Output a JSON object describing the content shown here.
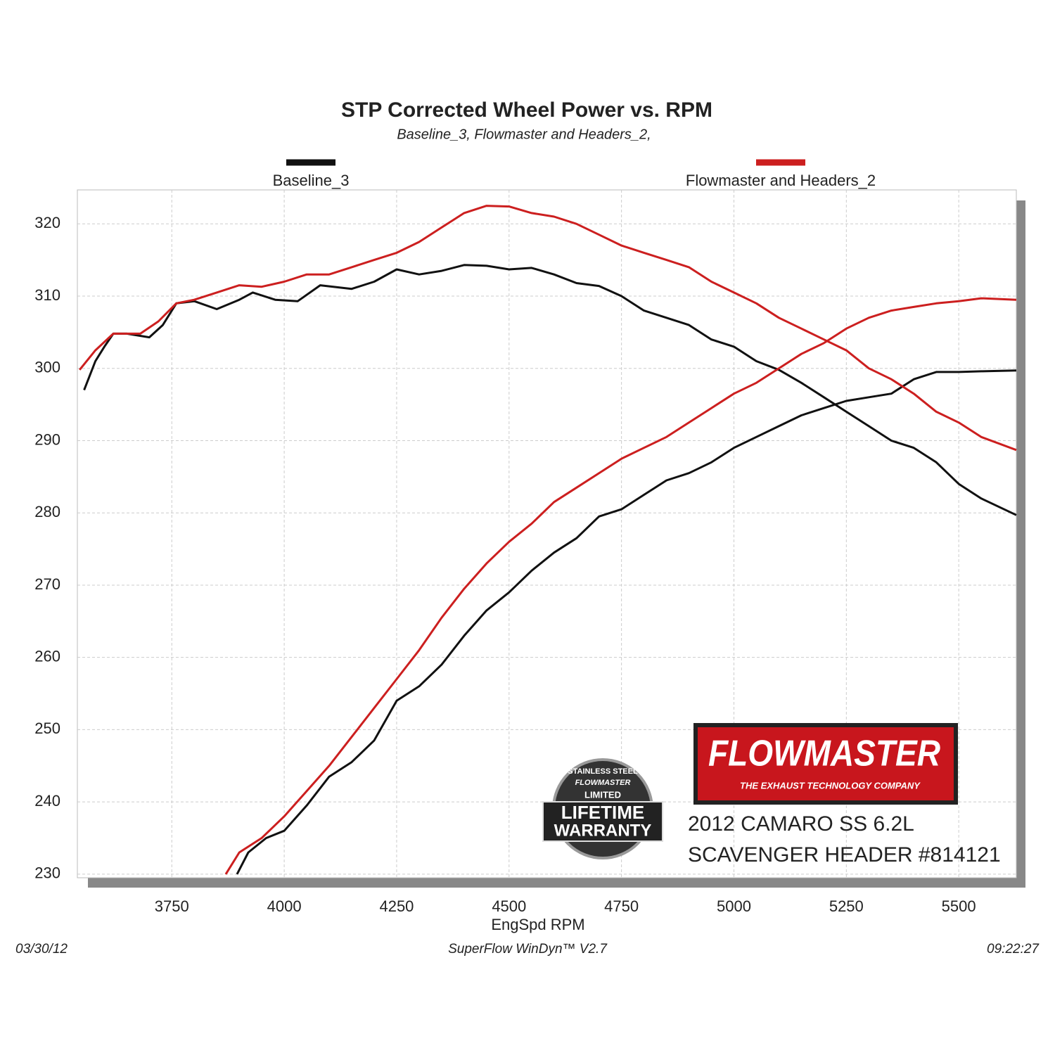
{
  "chart_data": {
    "type": "line",
    "title": "STP Corrected Wheel Power vs. RPM",
    "subtitle": "Baseline_3, Flowmaster and Headers_2,",
    "x_label": "EngSpd  RPM",
    "xlim": [
      3540,
      5628
    ],
    "ylim": [
      229.5,
      324.7
    ],
    "xticks": [
      3750,
      4000,
      4250,
      4500,
      4750,
      5000,
      5250,
      5500
    ],
    "yticks": [
      230,
      240,
      250,
      260,
      270,
      280,
      290,
      300,
      310,
      320
    ],
    "grid": true,
    "series": [
      {
        "name": "Baseline_3",
        "color": "#111111",
        "curves": [
          {
            "x": [
              3555,
              3580,
              3600,
              3620,
              3650,
              3700,
              3730,
              3760,
              3800,
              3850,
              3900,
              3930,
              3980,
              4030,
              4080,
              4150,
              4200,
              4250,
              4300,
              4350,
              4400,
              4450,
              4500,
              4550,
              4600,
              4650,
              4700,
              4750,
              4800,
              4850,
              4900,
              4950,
              5000,
              5050,
              5100,
              5150,
              5200,
              5250,
              5300,
              5350,
              5400,
              5450,
              5500,
              5550,
              5628
            ],
            "values": [
              297,
              301,
              303,
              304.8,
              304.8,
              304.3,
              306,
              309,
              309.3,
              308.2,
              309.5,
              310.5,
              309.5,
              309.3,
              311.5,
              311,
              312,
              313.7,
              313,
              313.5,
              314.3,
              314.2,
              313.7,
              313.9,
              313,
              311.8,
              311.4,
              310,
              308,
              307,
              306,
              304,
              303,
              301,
              299.8,
              298,
              296,
              294,
              292,
              290,
              289,
              287,
              284,
              282,
              279.7
            ]
          },
          {
            "x": [
              3895,
              3920,
              3960,
              4000,
              4050,
              4100,
              4150,
              4200,
              4250,
              4300,
              4350,
              4400,
              4450,
              4500,
              4550,
              4600,
              4650,
              4700,
              4750,
              4800,
              4850,
              4900,
              4950,
              5000,
              5050,
              5100,
              5150,
              5200,
              5250,
              5300,
              5350,
              5400,
              5450,
              5500,
              5550,
              5628
            ],
            "values": [
              230,
              233,
              235,
              236,
              239.5,
              243.5,
              245.5,
              248.5,
              254,
              256,
              259,
              263,
              266.5,
              269,
              272,
              274.5,
              276.5,
              279.5,
              280.5,
              282.5,
              284.5,
              285.5,
              287,
              289,
              290.5,
              292,
              293.5,
              294.5,
              295.5,
              296,
              296.5,
              298.5,
              299.5,
              299.5,
              299.6,
              299.7
            ]
          }
        ]
      },
      {
        "name": "Flowmaster and Headers_2",
        "color": "#cc1f1f",
        "curves": [
          {
            "x": [
              3545,
              3580,
              3620,
              3680,
              3720,
              3760,
              3800,
              3850,
              3900,
              3950,
              4000,
              4050,
              4100,
              4150,
              4200,
              4250,
              4300,
              4350,
              4400,
              4450,
              4500,
              4550,
              4600,
              4650,
              4700,
              4750,
              4800,
              4850,
              4900,
              4950,
              5000,
              5050,
              5100,
              5150,
              5200,
              5250,
              5300,
              5350,
              5400,
              5450,
              5500,
              5550,
              5628
            ],
            "values": [
              299.8,
              302.5,
              304.8,
              304.8,
              306.5,
              309,
              309.5,
              310.5,
              311.5,
              311.3,
              312,
              313,
              313,
              314,
              315,
              316,
              317.5,
              319.5,
              321.5,
              322.5,
              322.4,
              321.5,
              321,
              320,
              318.5,
              317,
              316,
              315,
              314,
              312,
              310.5,
              309,
              307,
              305.5,
              304,
              302.5,
              300,
              298.5,
              296.5,
              294,
              292.5,
              290.5,
              288.7
            ]
          },
          {
            "x": [
              3870,
              3900,
              3950,
              4000,
              4050,
              4100,
              4150,
              4200,
              4250,
              4300,
              4350,
              4400,
              4450,
              4500,
              4550,
              4600,
              4650,
              4700,
              4750,
              4800,
              4850,
              4900,
              4950,
              5000,
              5050,
              5100,
              5150,
              5200,
              5250,
              5300,
              5350,
              5400,
              5450,
              5500,
              5550,
              5628
            ],
            "values": [
              230,
              233,
              235,
              238,
              241.5,
              245,
              249,
              253,
              257,
              261,
              265.5,
              269.5,
              273,
              276,
              278.5,
              281.5,
              283.5,
              285.5,
              287.5,
              289,
              290.5,
              292.5,
              294.5,
              296.5,
              298,
              300,
              302,
              303.5,
              305.5,
              307,
              308,
              308.5,
              309,
              309.3,
              309.7,
              309.5
            ]
          }
        ]
      }
    ],
    "footer": {
      "date": "03/30/12",
      "software": "SuperFlow WinDyn™ V2.7",
      "time": "09:22:27"
    },
    "logo": {
      "brand": "FLOWMASTER",
      "tagline": "THE EXHAUST TECHNOLOGY COMPANY"
    },
    "badge": {
      "top": "STAINLESS STEEL",
      "brand": "FLOWMASTER",
      "line1": "LIMITED",
      "line2": "LIFETIME",
      "line3": "WARRANTY"
    },
    "caption": [
      "2012 CAMARO SS 6.2L",
      "SCAVENGER HEADER #814121"
    ]
  }
}
